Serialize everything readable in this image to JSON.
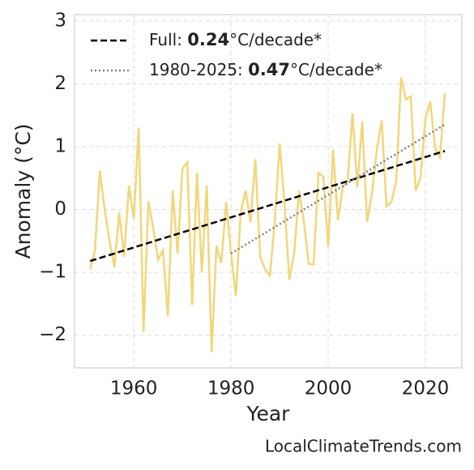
{
  "chart_data": {
    "type": "line",
    "xlabel": "Year",
    "ylabel": "Anomaly (°C)",
    "footer": "LocalClimateTrends.com",
    "xlim": [
      1947.8,
      2027.5
    ],
    "ylim": [
      -2.52,
      3.1
    ],
    "xticks": [
      1960,
      1980,
      2000,
      2020
    ],
    "yticks": [
      {
        "value": -2,
        "label": "−2"
      },
      {
        "value": -1,
        "label": "−1"
      },
      0,
      1,
      2,
      3
    ],
    "grid": true,
    "legend": "upper left",
    "series": [
      {
        "color": "#f2d67a",
        "style": "solid",
        "x": [
          1951,
          1952,
          1953,
          1954,
          1955,
          1956,
          1957,
          1958,
          1959,
          1960,
          1961,
          1962,
          1963,
          1964,
          1965,
          1966,
          1967,
          1968,
          1969,
          1970,
          1971,
          1972,
          1973,
          1974,
          1975,
          1976,
          1977,
          1978,
          1979,
          1980,
          1981,
          1982,
          1983,
          1984,
          1985,
          1986,
          1987,
          1988,
          1989,
          1990,
          1991,
          1992,
          1993,
          1994,
          1995,
          1996,
          1997,
          1998,
          1999,
          2000,
          2001,
          2002,
          2003,
          2004,
          2005,
          2006,
          2007,
          2008,
          2009,
          2010,
          2011,
          2012,
          2013,
          2014,
          2015,
          2016,
          2017,
          2018,
          2019,
          2020,
          2021,
          2022,
          2023,
          2024
        ],
        "values": [
          -0.95,
          -0.65,
          0.62,
          0.0,
          -0.5,
          -0.92,
          -0.05,
          -0.75,
          0.38,
          -0.15,
          1.3,
          -1.95,
          0.13,
          -0.3,
          -0.8,
          -0.65,
          -1.7,
          0.3,
          -0.7,
          0.65,
          0.75,
          -1.52,
          0.58,
          -1.0,
          0.38,
          -2.27,
          -0.58,
          -0.85,
          0.12,
          -0.7,
          -1.38,
          -0.05,
          0.3,
          -0.2,
          0.8,
          -0.75,
          -0.95,
          -1.05,
          -0.2,
          1.05,
          0.1,
          -1.12,
          -0.7,
          0.3,
          -0.2,
          -0.87,
          -0.87,
          0.58,
          0.52,
          -0.6,
          0.95,
          -0.17,
          0.35,
          0.45,
          1.53,
          0.35,
          1.4,
          -0.2,
          0.25,
          0.95,
          1.42,
          0.05,
          0.12,
          0.45,
          2.1,
          1.75,
          1.8,
          0.3,
          0.5,
          1.45,
          1.72,
          0.98,
          0.83,
          1.85
        ]
      },
      {
        "name": "Full:",
        "trend": 0.24,
        "unit": "°C/decade*",
        "color": "#000000",
        "style": "dashed",
        "x": [
          1951,
          2024
        ],
        "values": [
          -0.82,
          0.93
        ]
      },
      {
        "name": "1980-2025:",
        "trend": 0.47,
        "unit": "°C/decade*",
        "color": "#808080",
        "style": "dotted",
        "x": [
          1980,
          2024
        ],
        "values": [
          -0.7,
          1.35
        ]
      }
    ]
  }
}
